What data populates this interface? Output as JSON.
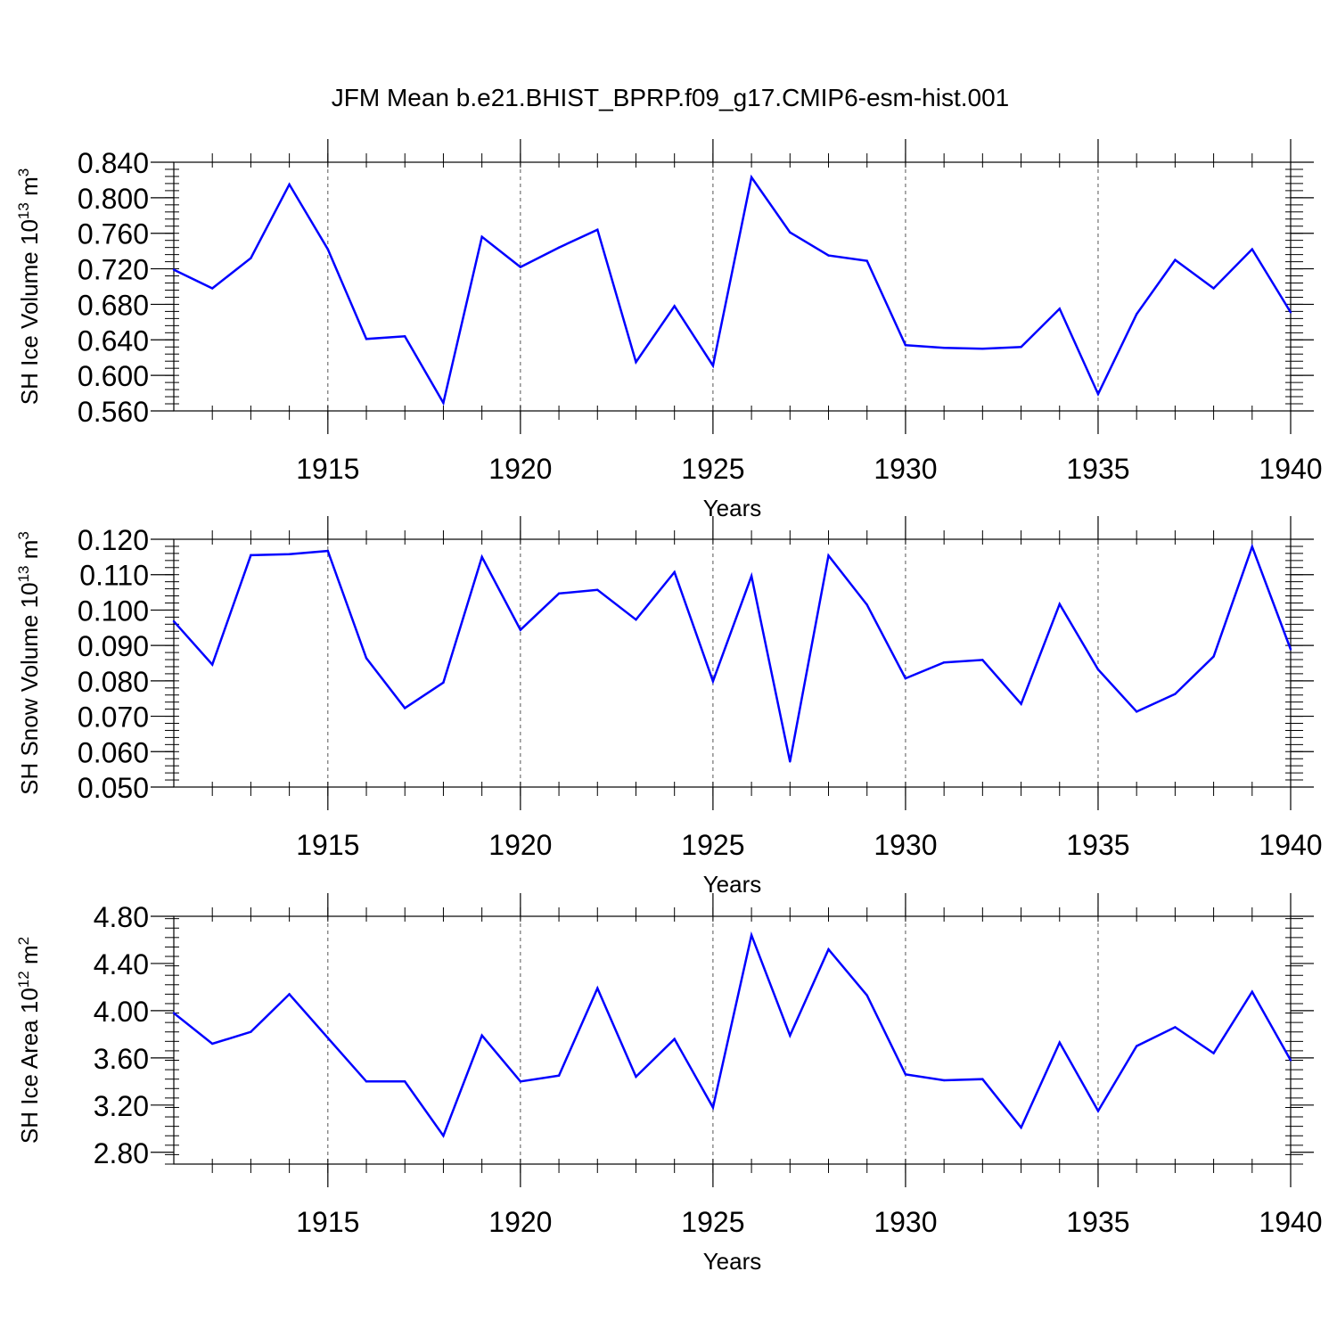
{
  "title": "JFM Mean b.e21.BHIST_BPRP.f09_g17.CMIP6-esm-hist.001",
  "chart_data": [
    {
      "type": "line",
      "ylabel": "SH Ice Volume 10",
      "ylabel_exp": "13",
      "ylabel_unit": " m",
      "ylabel_unit_exp": "3",
      "xlabel": "Years",
      "xlim": [
        1911,
        1940
      ],
      "ylim": [
        0.56,
        0.84
      ],
      "yticks": [
        "0.560",
        "0.600",
        "0.640",
        "0.680",
        "0.720",
        "0.760",
        "0.800",
        "0.840"
      ],
      "xticks": [
        "1915",
        "1920",
        "1925",
        "1930",
        "1935",
        "1940"
      ],
      "line_color": "#0000ff",
      "x": [
        1911,
        1912,
        1913,
        1914,
        1915,
        1916,
        1917,
        1918,
        1919,
        1920,
        1921,
        1922,
        1923,
        1924,
        1925,
        1926,
        1927,
        1928,
        1929,
        1930,
        1931,
        1932,
        1933,
        1934,
        1935,
        1936,
        1937,
        1938,
        1939,
        1940
      ],
      "values": [
        0.719,
        0.698,
        0.732,
        0.815,
        0.742,
        0.641,
        0.644,
        0.569,
        0.756,
        0.722,
        0.744,
        0.764,
        0.615,
        0.678,
        0.611,
        0.823,
        0.761,
        0.735,
        0.729,
        0.634,
        0.631,
        0.63,
        0.632,
        0.675,
        0.579,
        0.669,
        0.73,
        0.698,
        0.742,
        0.671
      ]
    },
    {
      "type": "line",
      "ylabel": "SH Snow Volume 10",
      "ylabel_exp": "13",
      "ylabel_unit": " m",
      "ylabel_unit_exp": "3",
      "xlabel": "Years",
      "xlim": [
        1911,
        1940
      ],
      "ylim": [
        0.05,
        0.12
      ],
      "yticks": [
        "0.050",
        "0.060",
        "0.070",
        "0.080",
        "0.090",
        "0.100",
        "0.110",
        "0.120"
      ],
      "xticks": [
        "1915",
        "1920",
        "1925",
        "1930",
        "1935",
        "1940"
      ],
      "line_color": "#0000ff",
      "x": [
        1911,
        1912,
        1913,
        1914,
        1915,
        1916,
        1917,
        1918,
        1919,
        1920,
        1921,
        1922,
        1923,
        1924,
        1925,
        1926,
        1927,
        1928,
        1929,
        1930,
        1931,
        1932,
        1933,
        1934,
        1935,
        1936,
        1937,
        1938,
        1939,
        1940
      ],
      "values": [
        0.0968,
        0.0846,
        0.1155,
        0.1158,
        0.1167,
        0.0864,
        0.0723,
        0.0795,
        0.115,
        0.0944,
        0.1047,
        0.1057,
        0.0973,
        0.1107,
        0.0799,
        0.1096,
        0.0572,
        0.1154,
        0.1015,
        0.0807,
        0.0852,
        0.0859,
        0.0735,
        0.1017,
        0.0832,
        0.0713,
        0.0763,
        0.0869,
        0.1179,
        0.0889
      ]
    },
    {
      "type": "line",
      "ylabel": "SH Ice Area 10",
      "ylabel_exp": "12",
      "ylabel_unit": " m",
      "ylabel_unit_exp": "2",
      "xlabel": "Years",
      "xlim": [
        1911,
        1940
      ],
      "ylim": [
        2.7,
        4.8
      ],
      "yticks": [
        "2.80",
        "3.20",
        "3.60",
        "4.00",
        "4.40",
        "4.80"
      ],
      "xticks": [
        "1915",
        "1920",
        "1925",
        "1930",
        "1935",
        "1940"
      ],
      "line_color": "#0000ff",
      "x": [
        1911,
        1912,
        1913,
        1914,
        1915,
        1916,
        1917,
        1918,
        1919,
        1920,
        1921,
        1922,
        1923,
        1924,
        1925,
        1926,
        1927,
        1928,
        1929,
        1930,
        1931,
        1932,
        1933,
        1934,
        1935,
        1936,
        1937,
        1938,
        1939,
        1940
      ],
      "values": [
        3.98,
        3.72,
        3.82,
        4.14,
        3.77,
        3.4,
        3.4,
        2.94,
        3.79,
        3.4,
        3.45,
        4.19,
        3.44,
        3.76,
        3.18,
        4.64,
        3.79,
        4.52,
        4.13,
        3.46,
        3.41,
        3.42,
        3.01,
        3.73,
        3.15,
        3.7,
        3.86,
        3.64,
        4.16,
        3.58
      ]
    }
  ]
}
